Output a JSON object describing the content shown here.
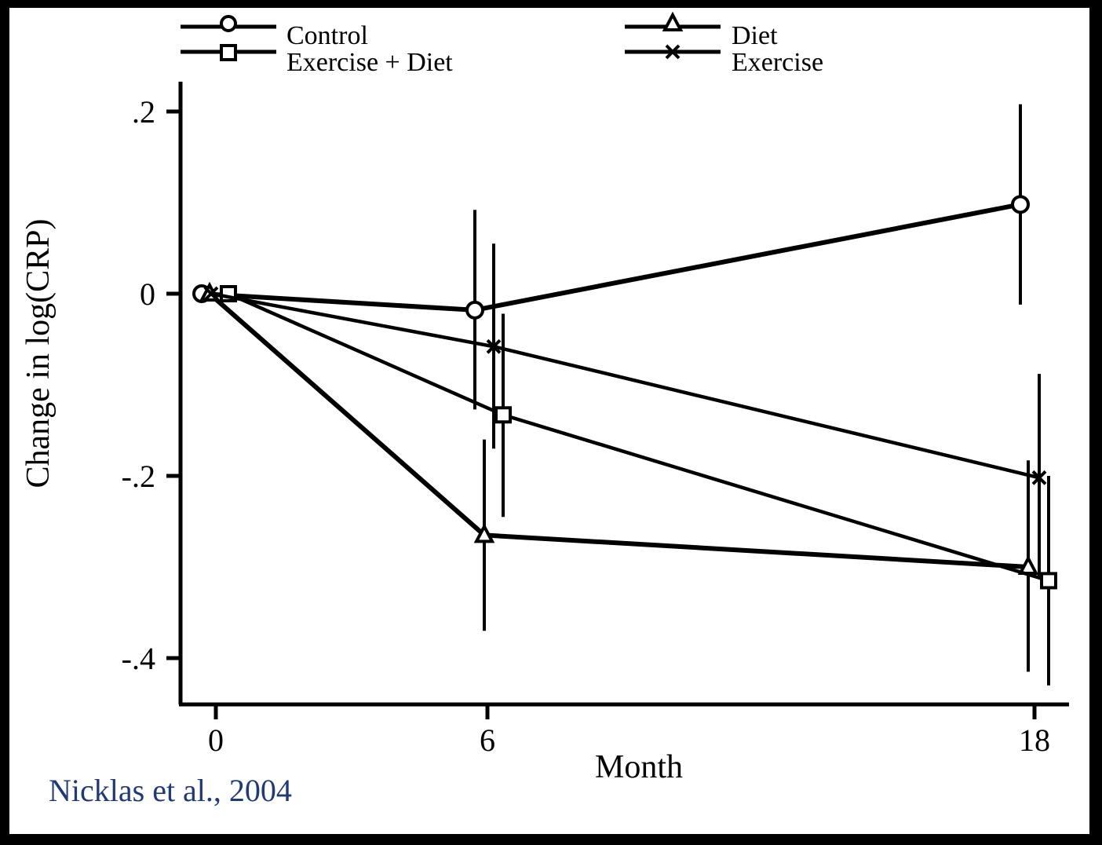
{
  "chart_data": {
    "type": "line",
    "title": "",
    "xlabel": "Month",
    "ylabel": "Change in log(CRP)",
    "x_ticks": [
      "0",
      "6",
      "18"
    ],
    "y_ticks": [
      ".2",
      "0",
      "-.2",
      "-.4"
    ],
    "ylim": [
      -0.45,
      0.23
    ],
    "xlim": [
      -0.8,
      19
    ],
    "grid": false,
    "legend_position": "top",
    "error_bars": true,
    "series": [
      {
        "name": "Control",
        "marker": "circle",
        "points": [
          {
            "x": 0,
            "y": 0,
            "lo": 0,
            "hi": 0
          },
          {
            "x": 6,
            "y": -0.018,
            "lo": -0.127,
            "hi": 0.092
          },
          {
            "x": 18,
            "y": 0.098,
            "lo": -0.012,
            "hi": 0.208
          }
        ]
      },
      {
        "name": "Diet",
        "marker": "triangle",
        "points": [
          {
            "x": 0,
            "y": 0,
            "lo": 0,
            "hi": 0
          },
          {
            "x": 6,
            "y": -0.265,
            "lo": -0.37,
            "hi": -0.16
          },
          {
            "x": 18,
            "y": -0.3,
            "lo": -0.415,
            "hi": -0.183
          }
        ]
      },
      {
        "name": "Exercise + Diet",
        "marker": "square",
        "points": [
          {
            "x": 0,
            "y": 0,
            "lo": 0,
            "hi": 0
          },
          {
            "x": 6,
            "y": -0.133,
            "lo": -0.245,
            "hi": -0.022
          },
          {
            "x": 18,
            "y": -0.315,
            "lo": -0.43,
            "hi": -0.2
          }
        ]
      },
      {
        "name": "Exercise",
        "marker": "x",
        "points": [
          {
            "x": 0,
            "y": 0,
            "lo": 0,
            "hi": 0
          },
          {
            "x": 6,
            "y": -0.058,
            "lo": -0.17,
            "hi": 0.055
          },
          {
            "x": 18,
            "y": -0.202,
            "lo": -0.31,
            "hi": -0.088
          }
        ]
      }
    ]
  },
  "citation": "Nicklas et al., 2004"
}
